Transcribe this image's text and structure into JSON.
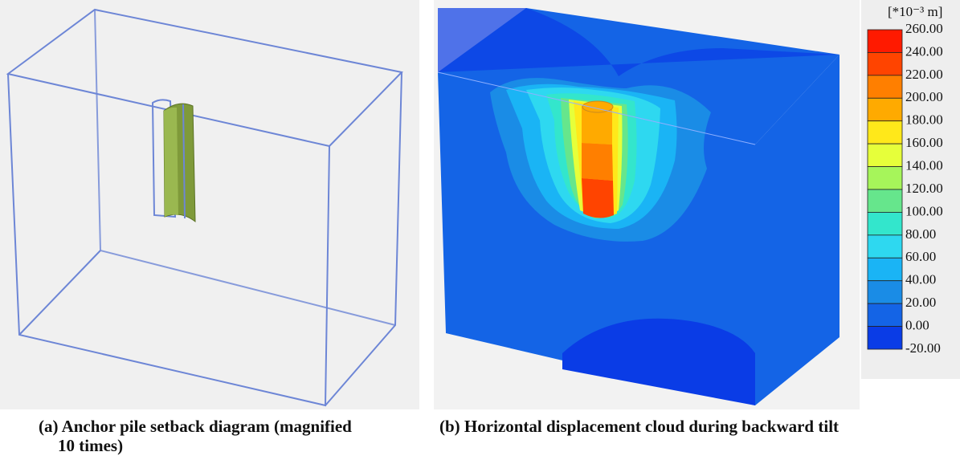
{
  "panels": [
    {
      "caption": [
        "(a) Anchor pile setback diagram (magnified",
        "10 times)"
      ]
    },
    {
      "caption": [
        "(b) Horizontal displacement cloud during backward tilt"
      ]
    }
  ],
  "legend": {
    "unit": "[*10⁻³ m]",
    "labels": [
      "260.00",
      "240.00",
      "220.00",
      "200.00",
      "180.00",
      "160.00",
      "140.00",
      "120.00",
      "100.00",
      "80.00",
      "60.00",
      "40.00",
      "20.00",
      "0.00",
      "-20.00"
    ],
    "colors": [
      "#ff1a00",
      "#ff4400",
      "#ff7f00",
      "#ffaa00",
      "#ffe81a",
      "#e6ff3a",
      "#a6f55a",
      "#66e68c",
      "#33e6cc",
      "#2ed8f0",
      "#1ab4f5",
      "#1a8ce6",
      "#1464e6",
      "#0a3ce6"
    ]
  }
}
